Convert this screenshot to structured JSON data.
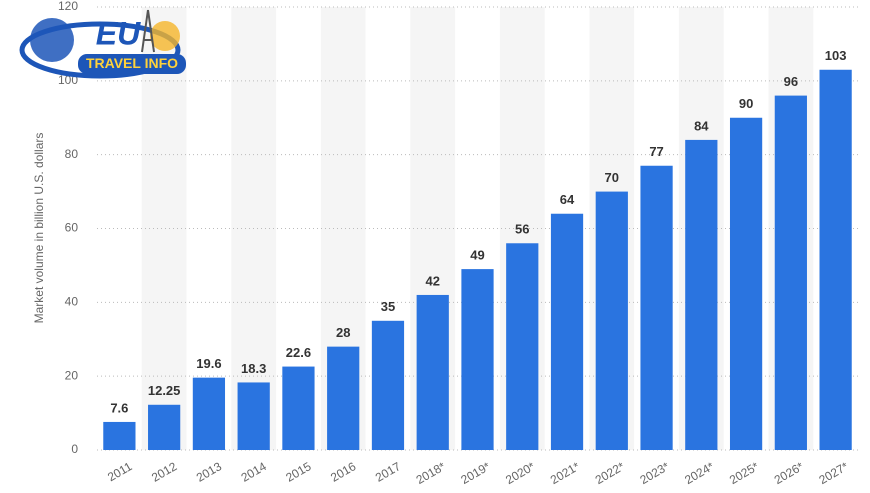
{
  "logo": {
    "main": "EU",
    "sub": "TRAVEL INFO"
  },
  "chart_data": {
    "type": "bar",
    "y_label": "Market volume in billion U.S. dollars",
    "categories": [
      "2011",
      "2012",
      "2013",
      "2014",
      "2015",
      "2016",
      "2017",
      "2018*",
      "2019*",
      "2020*",
      "2021*",
      "2022*",
      "2023*",
      "2024*",
      "2025*",
      "2026*",
      "2027*"
    ],
    "values": [
      7.6,
      12.25,
      19.6,
      18.3,
      22.6,
      28,
      35,
      42,
      49,
      56,
      64,
      70,
      77,
      84,
      90,
      96,
      103
    ],
    "color": "#2a74e0",
    "ylim": [
      0,
      120
    ],
    "yticks": [
      0,
      20,
      40,
      60,
      80,
      100,
      120
    ],
    "grid": true
  }
}
